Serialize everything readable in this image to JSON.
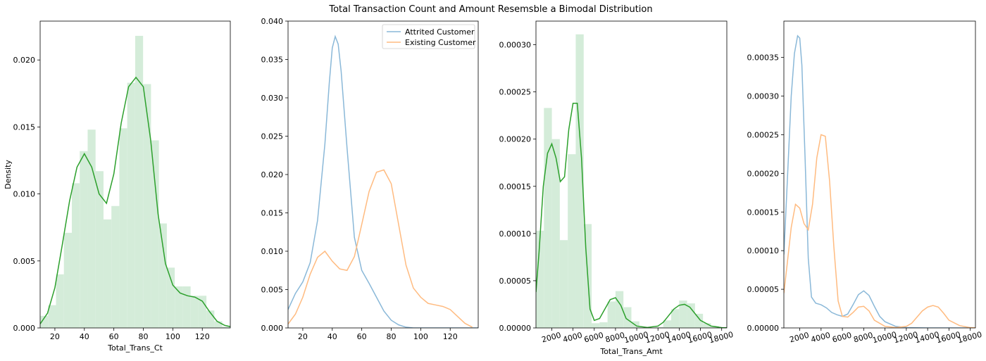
{
  "figure": {
    "title": "Total Transaction Count and Amount Resemsble a Bimodal Distribution"
  },
  "chart_data": [
    {
      "type": "area",
      "xlabel": "Total_Trans_Ct",
      "ylabel": "Density",
      "xlim": [
        10,
        139
      ],
      "ylim": [
        0,
        0.0229
      ],
      "xticks": [
        20,
        40,
        60,
        80,
        100,
        120
      ],
      "yticks": [
        0.0,
        0.005,
        0.01,
        0.015,
        0.02
      ],
      "ytick_labels": [
        "0.000",
        "0.005",
        "0.010",
        "0.015",
        "0.020"
      ],
      "colors": {
        "hist": "#d4ecd9",
        "kde": "#2ca02c"
      },
      "hist": {
        "edges": [
          10,
          15.37,
          20.74,
          26.12,
          31.49,
          36.86,
          42.23,
          47.6,
          52.98,
          58.35,
          63.72,
          69.09,
          74.46,
          79.84,
          85.21,
          90.58,
          95.95,
          101.32,
          106.7,
          112.07,
          117.44,
          122.81,
          128.18,
          133.56,
          138.93
        ],
        "values": [
          0.0009,
          0.0017,
          0.004,
          0.0071,
          0.0108,
          0.0132,
          0.0148,
          0.0117,
          0.0081,
          0.0091,
          0.0149,
          0.0183,
          0.0218,
          0.0182,
          0.014,
          0.0078,
          0.0045,
          0.0031,
          0.0031,
          0.0024,
          0.0024,
          0.0013,
          0.0005,
          0.0001
        ]
      },
      "kde": {
        "x": [
          10,
          15,
          20,
          25,
          30,
          35,
          40,
          45,
          50,
          55,
          60,
          65,
          70,
          75,
          80,
          85,
          90,
          95,
          100,
          105,
          110,
          115,
          120,
          125,
          130,
          135,
          139
        ],
        "y": [
          0.0003,
          0.0011,
          0.003,
          0.0062,
          0.0095,
          0.012,
          0.013,
          0.012,
          0.01,
          0.0093,
          0.0115,
          0.0153,
          0.018,
          0.0187,
          0.018,
          0.014,
          0.0085,
          0.0048,
          0.0032,
          0.0026,
          0.0024,
          0.0023,
          0.002,
          0.0012,
          0.0005,
          0.0002,
          0.0001
        ]
      }
    },
    {
      "type": "line",
      "xlim": [
        10,
        139
      ],
      "ylim": [
        0,
        0.04
      ],
      "xticks": [
        20,
        40,
        60,
        80,
        100,
        120
      ],
      "yticks": [
        0.0,
        0.005,
        0.01,
        0.015,
        0.02,
        0.025,
        0.03,
        0.035,
        0.04
      ],
      "ytick_labels": [
        "0.000",
        "0.005",
        "0.010",
        "0.015",
        "0.020",
        "0.025",
        "0.030",
        "0.035",
        "0.040"
      ],
      "legend_position": "top-right",
      "series": [
        {
          "name": "Attrited Customer",
          "color": "#8ab8d8",
          "x": [
            10,
            15,
            20,
            25,
            30,
            35,
            38,
            40,
            42,
            44,
            46,
            50,
            55,
            60,
            65,
            70,
            75,
            80,
            85,
            90,
            95,
            100,
            110,
            120,
            139
          ],
          "y": [
            0.0024,
            0.0045,
            0.006,
            0.0085,
            0.014,
            0.024,
            0.032,
            0.0365,
            0.038,
            0.037,
            0.0335,
            0.0235,
            0.0118,
            0.0075,
            0.0058,
            0.004,
            0.0022,
            0.001,
            0.0004,
            0.0001,
            0.0,
            0.0,
            0.0,
            0.0,
            0.0
          ]
        },
        {
          "name": "Existing Customer",
          "color": "#ffbb80",
          "x": [
            10,
            15,
            20,
            25,
            30,
            35,
            40,
            45,
            50,
            55,
            60,
            65,
            70,
            75,
            80,
            85,
            90,
            95,
            100,
            105,
            110,
            115,
            120,
            125,
            130,
            135
          ],
          "y": [
            0.0005,
            0.0018,
            0.004,
            0.007,
            0.0092,
            0.01,
            0.0087,
            0.0077,
            0.0075,
            0.0093,
            0.0135,
            0.0178,
            0.0203,
            0.0206,
            0.0188,
            0.0135,
            0.0082,
            0.0052,
            0.004,
            0.0032,
            0.003,
            0.0028,
            0.0024,
            0.0015,
            0.0006,
            0.0001
          ]
        }
      ]
    },
    {
      "type": "area",
      "xlabel": "Total_Trans_Amt",
      "xlim": [
        510,
        18484
      ],
      "ylim": [
        0,
        0.000325
      ],
      "xticks": [
        2000,
        4000,
        6000,
        8000,
        10000,
        12000,
        14000,
        16000,
        18000
      ],
      "yticks": [
        0.0,
        5e-05,
        0.0001,
        0.00015,
        0.0002,
        0.00025,
        0.0003
      ],
      "ytick_labels": [
        "0.00000",
        "0.00005",
        "0.00010",
        "0.00015",
        "0.00020",
        "0.00025",
        "0.00030"
      ],
      "colors": {
        "hist": "#d4ecd9",
        "kde": "#2ca02c"
      },
      "hist": {
        "edges": [
          510,
          1259,
          2008,
          2757,
          3506,
          4255,
          5004,
          5753,
          6502,
          7251,
          8000,
          8749,
          9498,
          10247,
          10996,
          11745,
          12494,
          13243,
          13992,
          14741,
          15490,
          16239,
          16988,
          17737,
          18486
        ],
        "values": [
          0.000103,
          0.000233,
          0.0002,
          9.3e-05,
          0.000184,
          0.000311,
          0.00011,
          5e-06,
          6e-06,
          2.8e-05,
          3.9e-05,
          2.2e-05,
          7e-06,
          1e-06,
          5e-07,
          1e-06,
          8e-06,
          2e-05,
          2.9e-05,
          2.6e-05,
          1.5e-05,
          5e-06,
          2e-06,
          1e-06
        ]
      },
      "kde": {
        "x": [
          510,
          800,
          1200,
          1600,
          2000,
          2400,
          2800,
          3200,
          3600,
          4000,
          4400,
          4800,
          5200,
          5600,
          6000,
          6500,
          7000,
          7500,
          8000,
          8500,
          9000,
          10000,
          11000,
          12000,
          12500,
          13000,
          13500,
          14000,
          14500,
          15000,
          15500,
          16000,
          17000,
          18000,
          18484
        ],
        "y": [
          3.8e-05,
          8e-05,
          0.00015,
          0.000185,
          0.000195,
          0.00018,
          0.000155,
          0.00016,
          0.00021,
          0.000238,
          0.000238,
          0.00018,
          8.5e-05,
          2e-05,
          8e-06,
          1e-05,
          2e-05,
          3e-05,
          3.2e-05,
          2.4e-05,
          1e-05,
          2e-06,
          5e-07,
          2e-06,
          6e-06,
          1.3e-05,
          2e-05,
          2.4e-05,
          2.5e-05,
          2.2e-05,
          1.5e-05,
          8e-06,
          2e-06,
          3e-07,
          2e-07
        ]
      }
    },
    {
      "type": "line",
      "xlim": [
        510,
        18484
      ],
      "ylim": [
        0,
        0.000397
      ],
      "xticks": [
        2000,
        4000,
        6000,
        8000,
        10000,
        12000,
        14000,
        16000,
        18000
      ],
      "yticks": [
        0.0,
        5e-05,
        0.0001,
        0.00015,
        0.0002,
        0.00025,
        0.0003,
        0.00035
      ],
      "ytick_labels": [
        "0.00000",
        "0.00005",
        "0.00010",
        "0.00015",
        "0.00020",
        "0.00025",
        "0.00030",
        "0.00035"
      ],
      "series": [
        {
          "name": "",
          "color": "#8ab8d8",
          "x": [
            510,
            800,
            1200,
            1500,
            1800,
            2000,
            2200,
            2500,
            2800,
            3100,
            3500,
            4000,
            4500,
            5000,
            5500,
            6000,
            6500,
            7000,
            7500,
            8000,
            8500,
            9000,
            9500,
            10000,
            11000,
            12000,
            14000,
            18484
          ],
          "y": [
            9.5e-05,
            0.00018,
            0.0003,
            0.000355,
            0.000378,
            0.000375,
            0.00034,
            0.00022,
            9e-05,
            4e-05,
            3.2e-05,
            3e-05,
            2.6e-05,
            2e-05,
            1.7e-05,
            1.5e-05,
            1.8e-05,
            3e-05,
            4.3e-05,
            4.8e-05,
            4.2e-05,
            2.8e-05,
            1.5e-05,
            8e-06,
            2e-06,
            5e-07,
            0.0,
            0.0
          ]
        },
        {
          "name": "",
          "color": "#ffbb80",
          "x": [
            510,
            800,
            1200,
            1600,
            2000,
            2400,
            2800,
            3200,
            3600,
            4000,
            4400,
            4800,
            5200,
            5600,
            6000,
            6500,
            7000,
            7500,
            8000,
            8500,
            9000,
            10000,
            11000,
            12000,
            12500,
            13000,
            13500,
            14000,
            14500,
            15000,
            15500,
            16000,
            17000,
            18000,
            18484
          ],
          "y": [
            4.5e-05,
            8e-05,
            0.00013,
            0.00016,
            0.000155,
            0.000135,
            0.000127,
            0.00016,
            0.00022,
            0.00025,
            0.000248,
            0.00019,
            0.000105,
            3.5e-05,
            1.5e-05,
            1.4e-05,
            2e-05,
            2.7e-05,
            2.8e-05,
            2.2e-05,
            1e-05,
            2e-06,
            5e-07,
            2e-06,
            6e-06,
            1.4e-05,
            2.2e-05,
            2.7e-05,
            2.9e-05,
            2.7e-05,
            1.9e-05,
            1e-05,
            3e-06,
            4e-07,
            2e-07
          ]
        }
      ]
    }
  ]
}
